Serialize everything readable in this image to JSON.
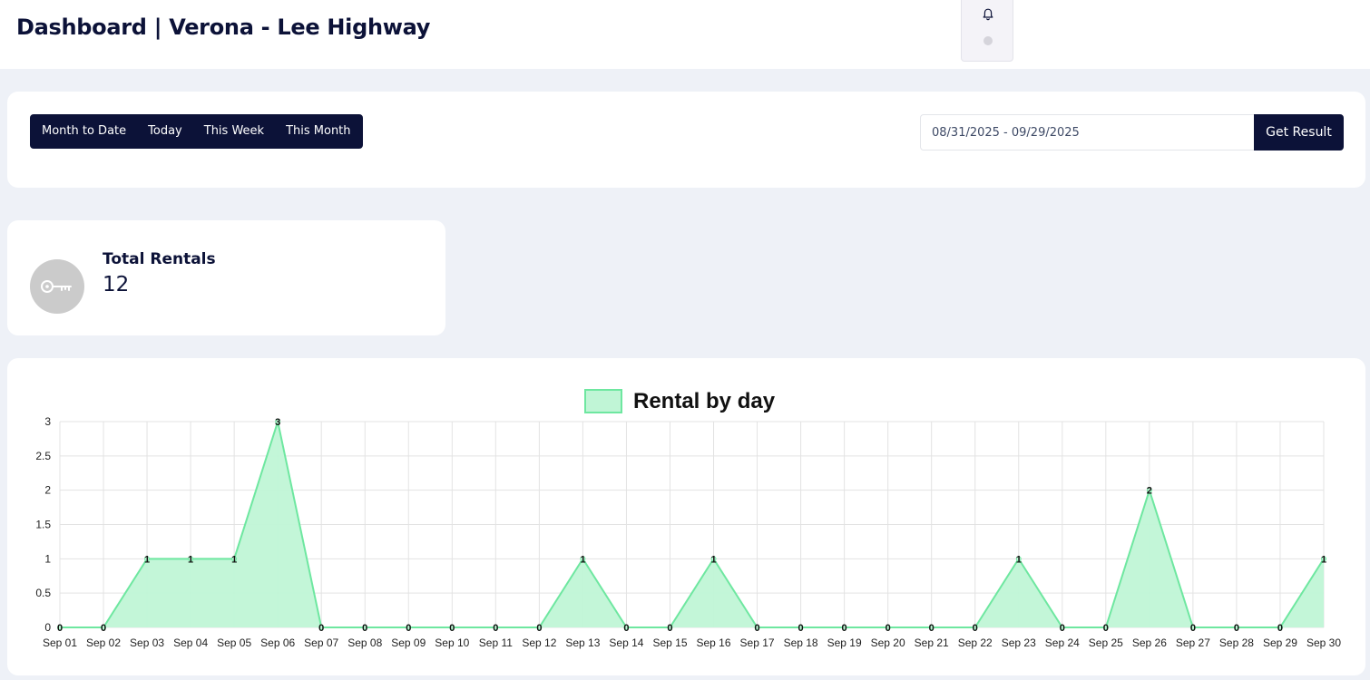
{
  "header": {
    "title": "Dashboard | Verona - Lee Highway",
    "notification_icon": "bell-icon"
  },
  "filters": {
    "ranges": [
      {
        "label": "Month to Date"
      },
      {
        "label": "Today"
      },
      {
        "label": "This Week"
      },
      {
        "label": "This Month"
      }
    ],
    "date_range_value": "08/31/2025 - 09/29/2025",
    "get_result_label": "Get Result"
  },
  "stats": {
    "total_rentals": {
      "label": "Total Rentals",
      "value": "12",
      "icon": "key-icon"
    }
  },
  "colors": {
    "brand_navy": "#0c1238",
    "series_fill": "#c0f5d6",
    "series_line": "#6ee7a0"
  },
  "chart_data": {
    "type": "area",
    "legend_label": "Rental by day",
    "legend_position": "top",
    "x": [
      "Sep 01",
      "Sep 02",
      "Sep 03",
      "Sep 04",
      "Sep 05",
      "Sep 06",
      "Sep 07",
      "Sep 08",
      "Sep 09",
      "Sep 10",
      "Sep 11",
      "Sep 12",
      "Sep 13",
      "Sep 14",
      "Sep 15",
      "Sep 16",
      "Sep 17",
      "Sep 18",
      "Sep 19",
      "Sep 20",
      "Sep 21",
      "Sep 22",
      "Sep 23",
      "Sep 24",
      "Sep 25",
      "Sep 26",
      "Sep 27",
      "Sep 28",
      "Sep 29",
      "Sep 30"
    ],
    "series": [
      {
        "name": "Rental by day",
        "values": [
          0,
          0,
          1,
          1,
          1,
          3,
          0,
          0,
          0,
          0,
          0,
          0,
          1,
          0,
          0,
          1,
          0,
          0,
          0,
          0,
          0,
          0,
          1,
          0,
          0,
          2,
          0,
          0,
          0,
          1
        ]
      }
    ],
    "ylim": [
      0,
      3
    ],
    "yticks": [
      "0",
      "0.5",
      "1",
      "1.5",
      "2",
      "2.5",
      "3"
    ],
    "grid": true,
    "data_labels": true
  }
}
